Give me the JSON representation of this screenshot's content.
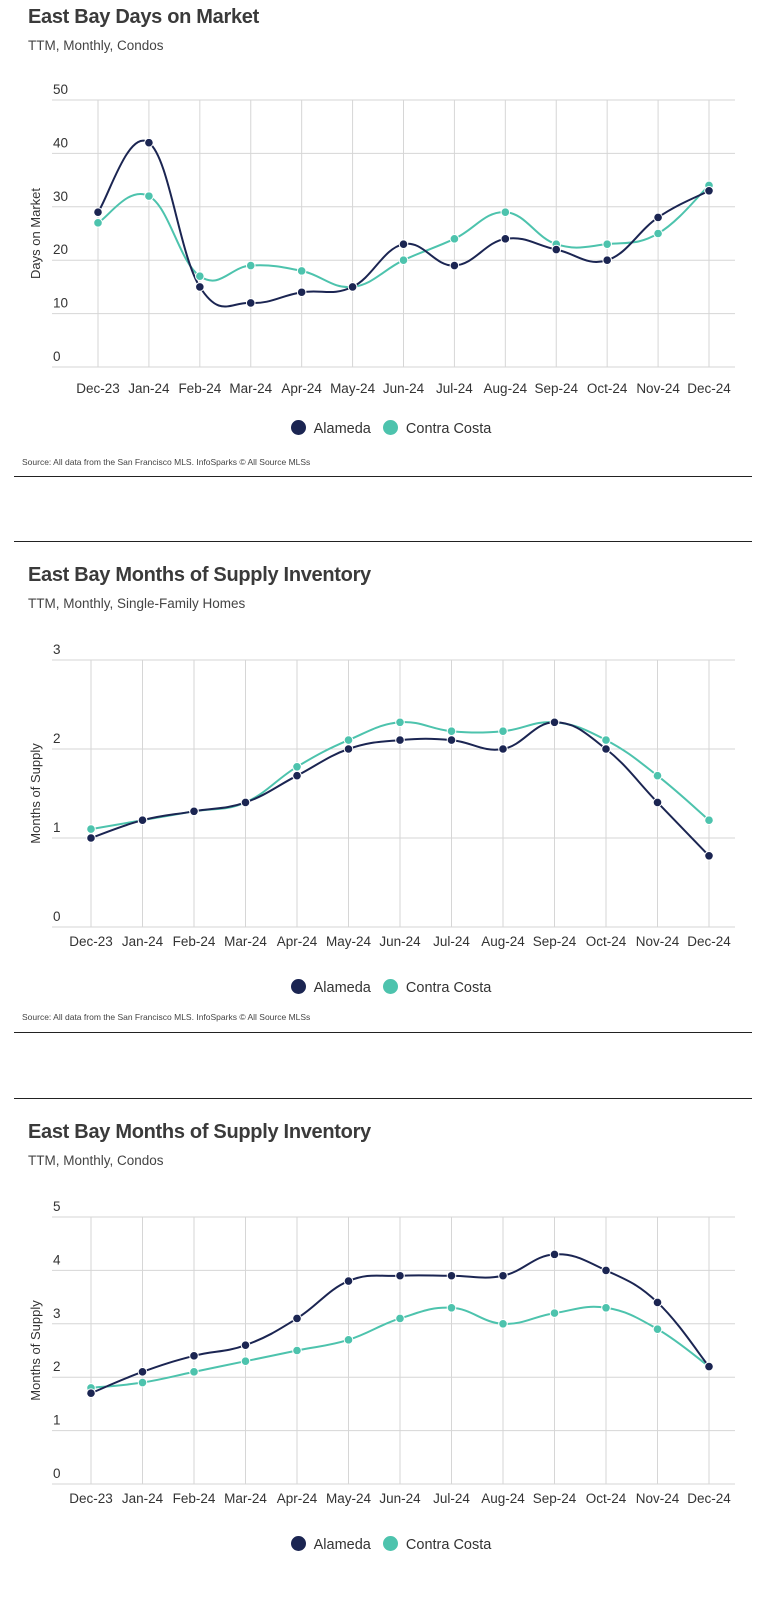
{
  "legend": {
    "alameda_label": "Alameda",
    "contra_costa_label": "Contra Costa"
  },
  "source_text": "Source:  All data from the San Francisco MLS. InfoSparks © All Source MLSs",
  "colors": {
    "alameda": "#1b2552",
    "contra_costa": "#4dc3ad",
    "grid": "#d6d6d6"
  },
  "chart_data": [
    {
      "type": "line",
      "title": "East Bay Days on Market",
      "subtitle": "TTM, Monthly, Condos",
      "ylabel": "Days on Market",
      "xlabel": "",
      "ylim": [
        0,
        50
      ],
      "yticks": [
        0,
        10,
        20,
        30,
        40,
        50
      ],
      "categories": [
        "Dec-23",
        "Jan-24",
        "Feb-24",
        "Mar-24",
        "Apr-24",
        "May-24",
        "Jun-24",
        "Jul-24",
        "Aug-24",
        "Sep-24",
        "Oct-24",
        "Nov-24",
        "Dec-24"
      ],
      "series": [
        {
          "name": "Alameda",
          "values": [
            29,
            42,
            15,
            12,
            14,
            15,
            23,
            19,
            24,
            22,
            20,
            28,
            33
          ]
        },
        {
          "name": "Contra Costa",
          "values": [
            27,
            32,
            17,
            19,
            18,
            15,
            20,
            24,
            29,
            23,
            23,
            25,
            34
          ]
        }
      ],
      "grid": true,
      "legend_position": "bottom-center"
    },
    {
      "type": "line",
      "title": "East Bay Months of Supply Inventory",
      "subtitle": "TTM, Monthly, Single-Family Homes",
      "ylabel": "Months of Supply",
      "xlabel": "",
      "ylim": [
        0,
        3
      ],
      "yticks": [
        0,
        1,
        2,
        3
      ],
      "categories": [
        "Dec-23",
        "Jan-24",
        "Feb-24",
        "Mar-24",
        "Apr-24",
        "May-24",
        "Jun-24",
        "Jul-24",
        "Aug-24",
        "Sep-24",
        "Oct-24",
        "Nov-24",
        "Dec-24"
      ],
      "series": [
        {
          "name": "Alameda",
          "values": [
            1.0,
            1.2,
            1.3,
            1.4,
            1.7,
            2.0,
            2.1,
            2.1,
            2.0,
            2.3,
            2.0,
            1.4,
            0.8
          ]
        },
        {
          "name": "Contra Costa",
          "values": [
            1.1,
            1.2,
            1.3,
            1.4,
            1.8,
            2.1,
            2.3,
            2.2,
            2.2,
            2.3,
            2.1,
            1.7,
            1.2
          ]
        }
      ],
      "grid": true,
      "legend_position": "bottom-center"
    },
    {
      "type": "line",
      "title": "East Bay Months of Supply Inventory",
      "subtitle": "TTM, Monthly, Condos",
      "ylabel": "Months of Supply",
      "xlabel": "",
      "ylim": [
        0,
        5
      ],
      "yticks": [
        0,
        1,
        2,
        3,
        4,
        5
      ],
      "categories": [
        "Dec-23",
        "Jan-24",
        "Feb-24",
        "Mar-24",
        "Apr-24",
        "May-24",
        "Jun-24",
        "Jul-24",
        "Aug-24",
        "Sep-24",
        "Oct-24",
        "Nov-24",
        "Dec-24"
      ],
      "series": [
        {
          "name": "Alameda",
          "values": [
            1.7,
            2.1,
            2.4,
            2.6,
            3.1,
            3.8,
            3.9,
            3.9,
            3.9,
            4.3,
            4.0,
            3.4,
            2.2
          ]
        },
        {
          "name": "Contra Costa",
          "values": [
            1.8,
            1.9,
            2.1,
            2.3,
            2.5,
            2.7,
            3.1,
            3.3,
            3.0,
            3.2,
            3.3,
            2.9,
            2.2
          ]
        }
      ],
      "grid": true,
      "legend_position": "bottom-center"
    }
  ]
}
